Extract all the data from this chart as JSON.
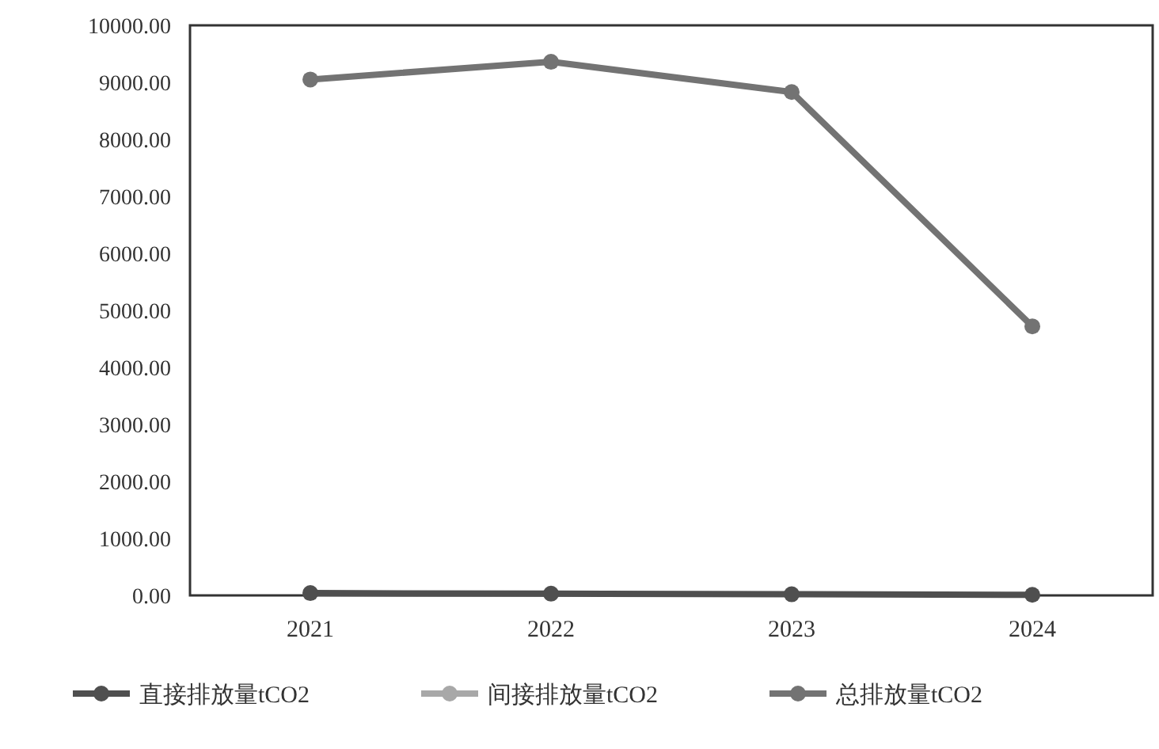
{
  "chart_data": {
    "type": "line",
    "categories": [
      "2021",
      "2022",
      "2023",
      "2024"
    ],
    "series": [
      {
        "name": "直接排放量tCO2",
        "color": "#4f4f4f",
        "values": [
          40,
          30,
          20,
          10
        ]
      },
      {
        "name": "间接排放量tCO2",
        "color": "#a8a8a8",
        "values": [
          null,
          null,
          null,
          null
        ]
      },
      {
        "name": "总排放量tCO2",
        "color": "#737373",
        "values": [
          9050,
          9360,
          8830,
          4720
        ]
      }
    ],
    "ylim": [
      0,
      10000
    ],
    "yticks": [
      {
        "value": 0,
        "label": "0.00"
      },
      {
        "value": 1000,
        "label": "1000.00"
      },
      {
        "value": 2000,
        "label": "2000.00"
      },
      {
        "value": 3000,
        "label": "3000.00"
      },
      {
        "value": 4000,
        "label": "4000.00"
      },
      {
        "value": 5000,
        "label": "5000.00"
      },
      {
        "value": 6000,
        "label": "6000.00"
      },
      {
        "value": 7000,
        "label": "7000.00"
      },
      {
        "value": 8000,
        "label": "8000.00"
      },
      {
        "value": 9000,
        "label": "9000.00"
      },
      {
        "value": 10000,
        "label": "10000.00"
      }
    ],
    "grid": false,
    "legend": "bottom",
    "marker": "circle",
    "line_style": "solid"
  }
}
